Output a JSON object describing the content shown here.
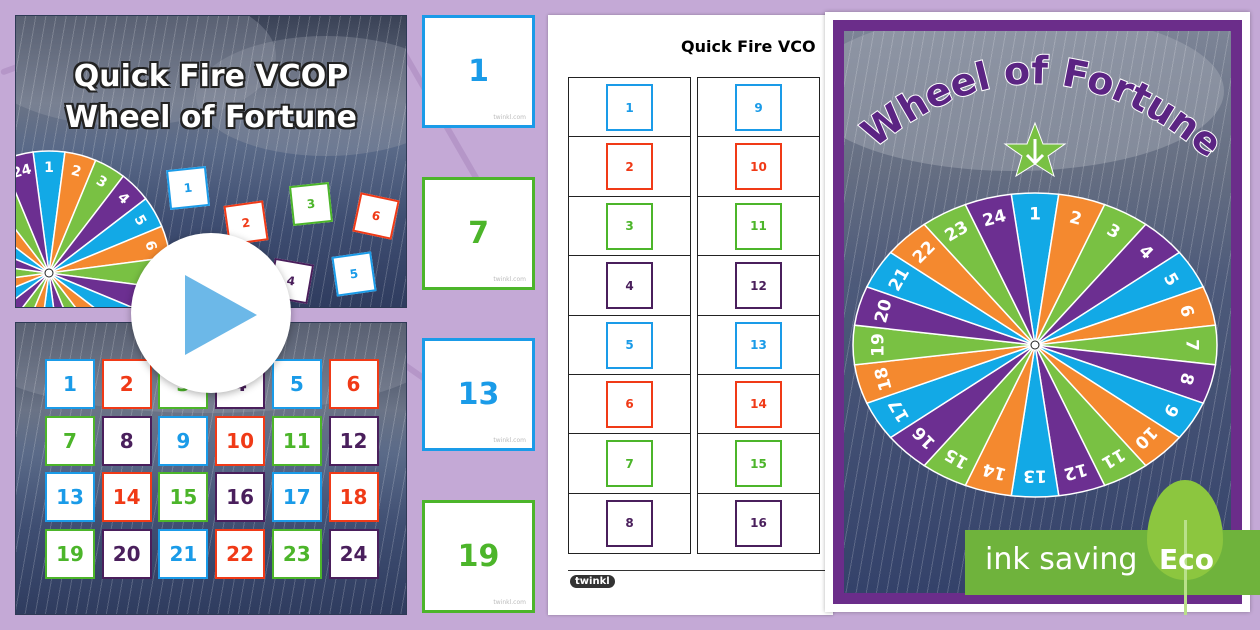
{
  "colors": {
    "blue": "#1a9be8",
    "red": "#f03a17",
    "green": "#4cb52a",
    "purple": "#4a1f5c",
    "wheel": [
      "#12a9e6",
      "#f4892f",
      "#79c143",
      "#6c2f91"
    ]
  },
  "slide1": {
    "title_line1": "Quick Fire VCOP",
    "title_line2": "Wheel of Fortune",
    "cards": [
      "1",
      "2",
      "3",
      "4",
      "5",
      "6"
    ],
    "wheel_labels": [
      "24",
      "1",
      "2",
      "3",
      "4",
      "5",
      "6"
    ]
  },
  "play_button": {
    "icon": "play-icon"
  },
  "slide2": {
    "cards": [
      "1",
      "2",
      "3",
      "4",
      "5",
      "6",
      "7",
      "8",
      "9",
      "10",
      "11",
      "12",
      "13",
      "14",
      "15",
      "16",
      "17",
      "18",
      "19",
      "20",
      "21",
      "22",
      "23",
      "24"
    ]
  },
  "big_cards": [
    {
      "label": "1",
      "watermark": "twinkl.com"
    },
    {
      "label": "7",
      "watermark": "twinkl.com"
    },
    {
      "label": "13",
      "watermark": "twinkl.com"
    },
    {
      "label": "19",
      "watermark": "twinkl.com"
    }
  ],
  "worksheet": {
    "title": "Quick Fire VCO",
    "left": [
      "1",
      "2",
      "3",
      "4",
      "5",
      "6",
      "7",
      "8"
    ],
    "right": [
      "9",
      "10",
      "11",
      "12",
      "13",
      "14",
      "15",
      "16"
    ],
    "logo": "twinkl"
  },
  "poster": {
    "title": "Wheel of Fortune",
    "wheel": [
      "1",
      "2",
      "3",
      "4",
      "5",
      "6",
      "7",
      "8",
      "9",
      "10",
      "11",
      "12",
      "13",
      "14",
      "15",
      "16",
      "17",
      "18",
      "19",
      "20",
      "21",
      "22",
      "23",
      "24"
    ],
    "pointer": "arrow-down-icon"
  },
  "eco_badge": {
    "text": "ink saving",
    "label": "Eco"
  }
}
